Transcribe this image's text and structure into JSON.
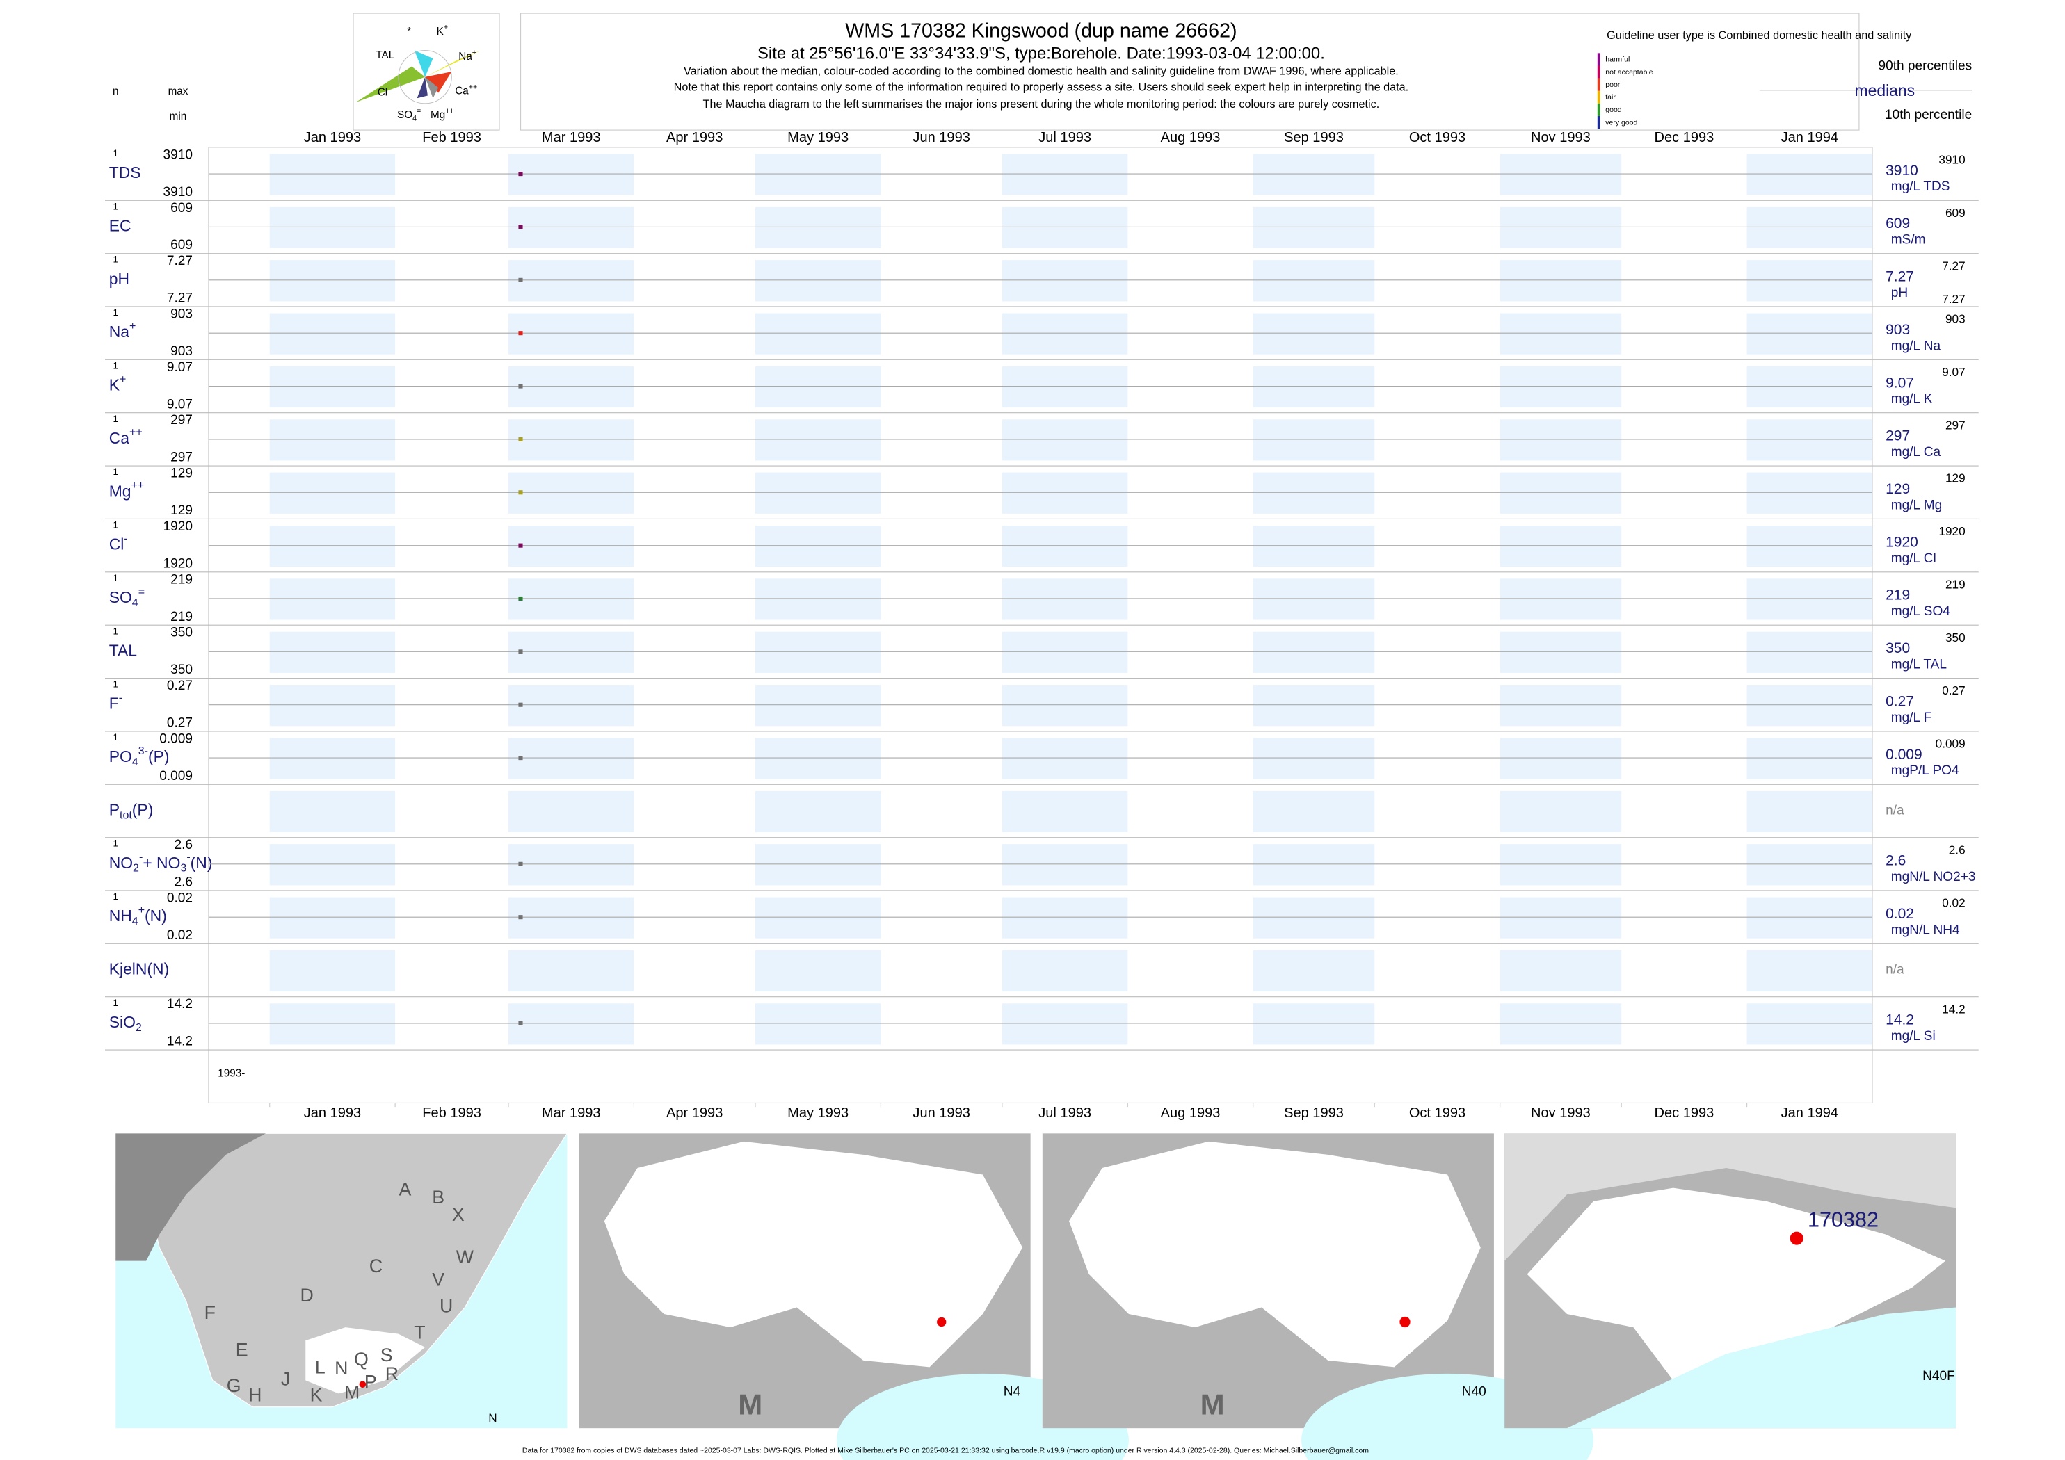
{
  "header": {
    "title": "WMS 170382  Kingswood (dup name 26662)",
    "subtitle": "Site at 25°56'16.0\"E 33°34'33.9\"S, type:Borehole. Date:1993-03-04 12:00:00.",
    "notes": [
      "Variation about the median,  colour-coded according to the combined domestic health and salinity guideline from DWAF 1996, where applicable.",
      "Note that this report contains only some of the information required to properly assess a site. Users should seek expert help in interpreting the data.",
      "The Maucha diagram to the left summarises the major ions present during the whole monitoring period: the colours are purely cosmetic."
    ],
    "col_n": "n",
    "col_max": "max",
    "col_min": "min"
  },
  "maucha": [
    [
      {
        "text": "*"
      }
    ],
    [
      {
        "text": "K"
      },
      {
        "text": "+",
        "pos": "sup"
      }
    ],
    [
      {
        "text": "TAL"
      }
    ],
    [
      {
        "text": "Na"
      },
      {
        "text": "+",
        "pos": "sup"
      }
    ],
    [
      {
        "text": "Cl"
      }
    ],
    [
      {
        "text": "Ca"
      },
      {
        "text": "++",
        "pos": "sup"
      }
    ],
    [
      {
        "text": "SO"
      },
      {
        "text": "4",
        "pos": "sub"
      },
      {
        "text": "=",
        "pos": "sup"
      }
    ],
    [
      {
        "text": "Mg"
      },
      {
        "text": "++",
        "pos": "sup"
      }
    ]
  ],
  "legend": {
    "guideline": "Guideline user type is Combined domestic health and salinity",
    "classes": [
      {
        "name": "harmful",
        "color": "#8b0a8b"
      },
      {
        "name": "not acceptable",
        "color": "#c8005a"
      },
      {
        "name": "poor",
        "color": "#e83a1c"
      },
      {
        "name": "fair",
        "color": "#f0b400"
      },
      {
        "name": "good",
        "color": "#2e9a2e"
      },
      {
        "name": "very good",
        "color": "#1a2a9a"
      }
    ],
    "p90": "90th percentiles",
    "medians": "medians",
    "p10": "10th percentile"
  },
  "chart_data": {
    "type": "strip",
    "xlim": [
      "1993-01-01",
      "1994-02-01"
    ],
    "date_label": "1993-",
    "xticks": [
      {
        "value": "1993-01-01",
        "label": "Jan 1993"
      },
      {
        "value": "1993-02-01",
        "label": "Feb 1993"
      },
      {
        "value": "1993-03-01",
        "label": "Mar 1993"
      },
      {
        "value": "1993-04-01",
        "label": "Apr 1993"
      },
      {
        "value": "1993-05-01",
        "label": "May 1993"
      },
      {
        "value": "1993-06-01",
        "label": "Jun 1993"
      },
      {
        "value": "1993-07-01",
        "label": "Jul 1993"
      },
      {
        "value": "1993-08-01",
        "label": "Aug 1993"
      },
      {
        "value": "1993-09-01",
        "label": "Sep 1993"
      },
      {
        "value": "1993-10-01",
        "label": "Oct 1993"
      },
      {
        "value": "1993-11-01",
        "label": "Nov 1993"
      },
      {
        "value": "1993-12-01",
        "label": "Dec 1993"
      },
      {
        "value": "1994-01-01",
        "label": "Jan 1994"
      }
    ],
    "rows": [
      {
        "label": [
          {
            "text": "TDS"
          }
        ],
        "n": 1,
        "max": 3910,
        "min": 3910,
        "x": [
          "1993-03-04"
        ],
        "values": [
          3910
        ],
        "color": "#7a0a5a",
        "median": 3910,
        "unit": "mg/L TDS",
        "p90": 3910
      },
      {
        "label": [
          {
            "text": "EC"
          }
        ],
        "n": 1,
        "max": 609,
        "min": 609,
        "x": [
          "1993-03-04"
        ],
        "values": [
          609
        ],
        "color": "#7a0a5a",
        "median": 609,
        "unit": "mS/m",
        "p90": 609
      },
      {
        "label": [
          {
            "text": "pH"
          }
        ],
        "n": 1,
        "max": 7.27,
        "min": 7.27,
        "x": [
          "1993-03-04"
        ],
        "values": [
          7.27
        ],
        "color": "#707070",
        "median": 7.27,
        "unit": "pH",
        "p90": 7.27,
        "p10": 7.27
      },
      {
        "label": [
          {
            "text": "Na"
          },
          {
            "text": "+",
            "pos": "sup"
          }
        ],
        "n": 1,
        "max": 903,
        "min": 903,
        "x": [
          "1993-03-04"
        ],
        "values": [
          903
        ],
        "color": "#e0201a",
        "median": 903,
        "unit": "mg/L Na",
        "p90": 903
      },
      {
        "label": [
          {
            "text": "K"
          },
          {
            "text": "+",
            "pos": "sup"
          }
        ],
        "n": 1,
        "max": 9.07,
        "min": 9.07,
        "x": [
          "1993-03-04"
        ],
        "values": [
          9.07
        ],
        "color": "#707070",
        "median": 9.07,
        "unit": "mg/L K",
        "p90": 9.07
      },
      {
        "label": [
          {
            "text": "Ca"
          },
          {
            "text": "++",
            "pos": "sup"
          }
        ],
        "n": 1,
        "max": 297,
        "min": 297,
        "x": [
          "1993-03-04"
        ],
        "values": [
          297
        ],
        "color": "#a8a020",
        "median": 297,
        "unit": "mg/L Ca",
        "p90": 297
      },
      {
        "label": [
          {
            "text": "Mg"
          },
          {
            "text": "++",
            "pos": "sup"
          }
        ],
        "n": 1,
        "max": 129,
        "min": 129,
        "x": [
          "1993-03-04"
        ],
        "values": [
          129
        ],
        "color": "#a8a020",
        "median": 129,
        "unit": "mg/L Mg",
        "p90": 129
      },
      {
        "label": [
          {
            "text": "Cl"
          },
          {
            "text": "-",
            "pos": "sup"
          }
        ],
        "n": 1,
        "max": 1920,
        "min": 1920,
        "x": [
          "1993-03-04"
        ],
        "values": [
          1920
        ],
        "color": "#7a0a5a",
        "median": 1920,
        "unit": "mg/L Cl",
        "p90": 1920
      },
      {
        "label": [
          {
            "text": "SO"
          },
          {
            "text": "4",
            "pos": "sub"
          },
          {
            "text": "=",
            "pos": "sup"
          }
        ],
        "n": 1,
        "max": 219,
        "min": 219,
        "x": [
          "1993-03-04"
        ],
        "values": [
          219
        ],
        "color": "#2e7a3a",
        "median": 219,
        "unit": "mg/L SO4",
        "p90": 219
      },
      {
        "label": [
          {
            "text": "TAL"
          }
        ],
        "n": 1,
        "max": 350,
        "min": 350,
        "x": [
          "1993-03-04"
        ],
        "values": [
          350
        ],
        "color": "#707070",
        "median": 350,
        "unit": "mg/L TAL",
        "p90": 350
      },
      {
        "label": [
          {
            "text": "F"
          },
          {
            "text": "-",
            "pos": "sup"
          }
        ],
        "n": 1,
        "max": 0.27,
        "min": 0.27,
        "x": [
          "1993-03-04"
        ],
        "values": [
          0.27
        ],
        "color": "#707070",
        "median": 0.27,
        "unit": "mg/L F",
        "p90": 0.27
      },
      {
        "label": [
          {
            "text": "PO"
          },
          {
            "text": "4",
            "pos": "sub"
          },
          {
            "text": "3-",
            "pos": "sup"
          },
          {
            "text": "(P)"
          }
        ],
        "n": 1,
        "max": 0.009,
        "min": 0.009,
        "x": [
          "1993-03-04"
        ],
        "values": [
          0.009
        ],
        "color": "#707070",
        "median": 0.009,
        "unit": "mgP/L PO4",
        "p90": 0.009
      },
      {
        "label": [
          {
            "text": "P"
          },
          {
            "text": "tot",
            "pos": "sub"
          },
          {
            "text": "(P)"
          }
        ],
        "na": "n/a"
      },
      {
        "label": [
          {
            "text": "NO"
          },
          {
            "text": "2",
            "pos": "sub"
          },
          {
            "text": "-",
            "pos": "sup"
          },
          {
            "text": "+ NO"
          },
          {
            "text": "3",
            "pos": "sub"
          },
          {
            "text": "-",
            "pos": "sup"
          },
          {
            "text": "(N)"
          }
        ],
        "n": 1,
        "max": 2.6,
        "min": 2.6,
        "x": [
          "1993-03-04"
        ],
        "values": [
          2.6
        ],
        "color": "#707070",
        "median": 2.6,
        "unit": "mgN/L NO2+3",
        "p90": 2.6
      },
      {
        "label": [
          {
            "text": "NH"
          },
          {
            "text": "4",
            "pos": "sub"
          },
          {
            "text": "+",
            "pos": "sup"
          },
          {
            "text": "(N)"
          }
        ],
        "n": 1,
        "max": 0.02,
        "min": 0.02,
        "x": [
          "1993-03-04"
        ],
        "values": [
          0.02
        ],
        "color": "#707070",
        "median": 0.02,
        "unit": "mgN/L NH4",
        "p90": 0.02
      },
      {
        "label": [
          {
            "text": "KjelN(N)"
          }
        ],
        "na": "n/a"
      },
      {
        "label": [
          {
            "text": "SiO"
          },
          {
            "text": "2",
            "pos": "sub"
          }
        ],
        "n": 1,
        "max": 14.2,
        "min": 14.2,
        "x": [
          "1993-03-04"
        ],
        "values": [
          14.2
        ],
        "color": "#707070",
        "median": 14.2,
        "unit": "mg/L Si",
        "p90": 14.2
      }
    ]
  },
  "maps": [
    {
      "labels": [
        "A",
        "B",
        "X",
        "W",
        "C",
        "V",
        "U",
        "D",
        "T",
        "F",
        "E",
        "L",
        "N",
        "Q",
        "S",
        "R",
        "G",
        "H",
        "J",
        "K",
        "M",
        "P",
        "N"
      ]
    },
    {
      "labels": [
        "M",
        "N4"
      ]
    },
    {
      "labels": [
        "M",
        "N40"
      ]
    },
    {
      "labels": [
        "170382",
        "N40F"
      ]
    }
  ],
  "footer": "Data for 170382 from copies of DWS databases dated ~2025-03-07 Labs: DWS-RQIS. Plotted at Mike Silberbauer's PC on 2025-03-21 21:33:32 using barcode.R v19.9 (macro option) under R version 4.4.3 (2025-02-28). Queries: Michael.Silberbauer@gmail.com"
}
